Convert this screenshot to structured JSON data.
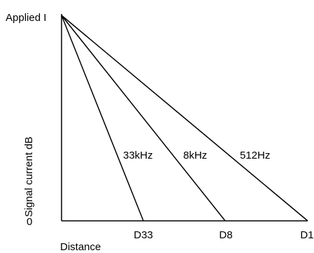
{
  "diagram": {
    "y_top_label": "Applied I",
    "y_zero_label": "0",
    "y_axis_title": "Signal current dB",
    "x_axis_title": "Distance",
    "colors": {
      "line": "#000000",
      "text": "#000000",
      "background": "#ffffff"
    },
    "curves": [
      {
        "label": "33kHz",
        "end_label": "D33"
      },
      {
        "label": "8kHz",
        "end_label": "D8"
      },
      {
        "label": "512Hz",
        "end_label": "D1"
      }
    ]
  }
}
